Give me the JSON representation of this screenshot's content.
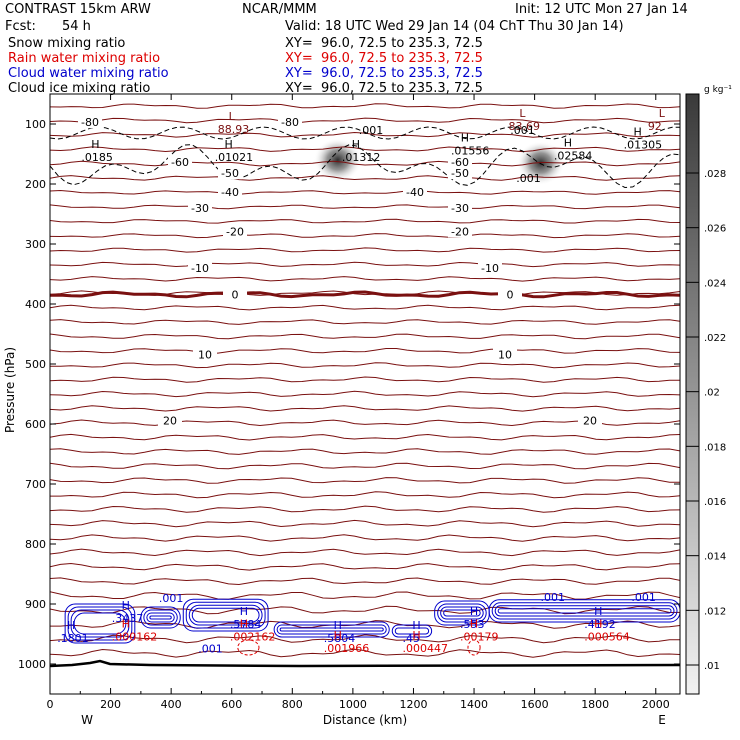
{
  "header": {
    "model": "CONTRAST 15km ARW",
    "org": "NCAR/MMM",
    "init": "Init: 12 UTC Mon 27 Jan 14",
    "fcst_label": "Fcst:",
    "fcst_value": "54 h",
    "valid": "Valid: 18 UTC Wed 29 Jan 14 (04 ChT Thu 30 Jan 14)"
  },
  "fields": [
    {
      "name": "Snow mixing ratio",
      "xy": "XY=  96.0, 72.5 to 235.3, 72.5",
      "color": "#000000"
    },
    {
      "name": "Rain water mixing ratio",
      "xy": "XY=  96.0, 72.5 to 235.3, 72.5",
      "color": "#dd0000"
    },
    {
      "name": "Cloud water mixing ratio",
      "xy": "XY=  96.0, 72.5 to 235.3, 72.5",
      "color": "#0000cc"
    },
    {
      "name": "Cloud ice mixing ratio",
      "xy": "XY=  96.0, 72.5 to 235.3, 72.5",
      "color": "#000000"
    }
  ],
  "colorbar": {
    "unit": "g kg⁻¹",
    "labels": [
      ".028",
      ".026",
      ".024",
      ".022",
      ".02",
      ".018",
      ".016",
      ".014",
      ".012",
      ".01"
    ]
  },
  "chart_data": {
    "type": "contour",
    "xlabel": "Distance (km)",
    "ylabel": "Pressure (hPa)",
    "xlim": [
      0,
      2080
    ],
    "ylim": [
      1050,
      50
    ],
    "x_ticks": [
      "0",
      "200",
      "400",
      "600",
      "800",
      "1000",
      "1200",
      "1400",
      "1600",
      "1800",
      "2000"
    ],
    "y_ticks": [
      "100",
      "200",
      "300",
      "400",
      "500",
      "600",
      "700",
      "800",
      "900",
      "1000"
    ],
    "direction_labels": {
      "left": "W",
      "right": "E"
    },
    "temperature_contours": [
      {
        "label": "-80",
        "p": 97
      },
      {
        "label": "-60",
        "p": 163
      },
      {
        "label": "-50",
        "p": 182
      },
      {
        "label": "-40",
        "p": 213
      },
      {
        "label": "-30",
        "p": 240
      },
      {
        "label": "-20",
        "p": 279
      },
      {
        "label": "-10",
        "p": 340
      },
      {
        "label": "0",
        "p": 384
      },
      {
        "label": "10",
        "p": 484
      },
      {
        "label": "20",
        "p": 594
      }
    ],
    "extrema_labels": [
      {
        "kind": "L",
        "value": "88.93",
        "x": 600,
        "p": 110,
        "color": "#7a1010"
      },
      {
        "kind": "L",
        "value": "83.69",
        "x": 1560,
        "p": 105,
        "color": "#7a1010"
      },
      {
        "kind": "L",
        "value": "92",
        "x": 2020,
        "p": 105,
        "color": "#7a1010"
      },
      {
        "kind": "H",
        "value": ".0185",
        "x": 150,
        "p": 157,
        "color": "#000000"
      },
      {
        "kind": "H",
        "value": ".01021",
        "x": 590,
        "p": 157,
        "color": "#000000"
      },
      {
        "kind": "H",
        "value": ".01312",
        "x": 1010,
        "p": 157,
        "color": "#000000"
      },
      {
        "kind": "H",
        "value": ".01556",
        "x": 1370,
        "p": 146,
        "color": "#000000"
      },
      {
        "kind": "H",
        "value": ".02584",
        "x": 1710,
        "p": 154,
        "color": "#000000"
      },
      {
        "kind": "H",
        "value": ".01305",
        "x": 1940,
        "p": 136,
        "color": "#000000"
      },
      {
        "kind": "H",
        "value": ".3437",
        "x": 250,
        "p": 925,
        "color": "#0000cc"
      },
      {
        "kind": "H",
        "value": ".5784",
        "x": 640,
        "p": 935,
        "color": "#0000cc"
      },
      {
        "kind": "H",
        "value": ".5804",
        "x": 950,
        "p": 958,
        "color": "#0000cc"
      },
      {
        "kind": "H",
        "value": ".45",
        "x": 1210,
        "p": 958,
        "color": "#0000cc"
      },
      {
        "kind": "H",
        "value": ".553",
        "x": 1400,
        "p": 935,
        "color": "#0000cc"
      },
      {
        "kind": "H",
        "value": ".4192",
        "x": 1810,
        "p": 935,
        "color": "#0000cc"
      },
      {
        "kind": "H",
        "value": ".1801",
        "x": 70,
        "p": 958,
        "color": "#0000cc"
      },
      {
        "kind": "H",
        "value": ".000162",
        "x": 250,
        "p": 956,
        "color": "#dd0000"
      },
      {
        "kind": "H",
        "value": ".002162",
        "x": 640,
        "p": 956,
        "color": "#dd0000"
      },
      {
        "kind": "H",
        "value": ".001966",
        "x": 950,
        "p": 975,
        "color": "#dd0000"
      },
      {
        "kind": "H",
        "value": ".000447",
        "x": 1210,
        "p": 975,
        "color": "#dd0000"
      },
      {
        "kind": "H",
        "value": ".00179",
        "x": 1400,
        "p": 956,
        "color": "#dd0000"
      },
      {
        "kind": "H",
        "value": ".000564",
        "x": 1810,
        "p": 956,
        "color": "#dd0000"
      }
    ],
    "isoline_labels": [
      {
        "value": ".001",
        "x": 1060,
        "p": 110,
        "color": "#000000"
      },
      {
        "value": ".001",
        "x": 1560,
        "p": 110,
        "color": "#000000"
      },
      {
        "value": ".001",
        "x": 1580,
        "p": 190,
        "color": "#000000"
      },
      {
        "value": ".001",
        "x": 400,
        "p": 890,
        "color": "#0000cc"
      },
      {
        "value": ".001",
        "x": 530,
        "p": 974,
        "color": "#0000cc"
      },
      {
        "value": ".001",
        "x": 1660,
        "p": 888,
        "color": "#0000cc"
      },
      {
        "value": ".001",
        "x": 1960,
        "p": 888,
        "color": "#0000cc"
      }
    ],
    "cloud_ice_maxima": [
      {
        "x": 950,
        "p": 160
      },
      {
        "x": 1620,
        "p": 165
      }
    ]
  }
}
